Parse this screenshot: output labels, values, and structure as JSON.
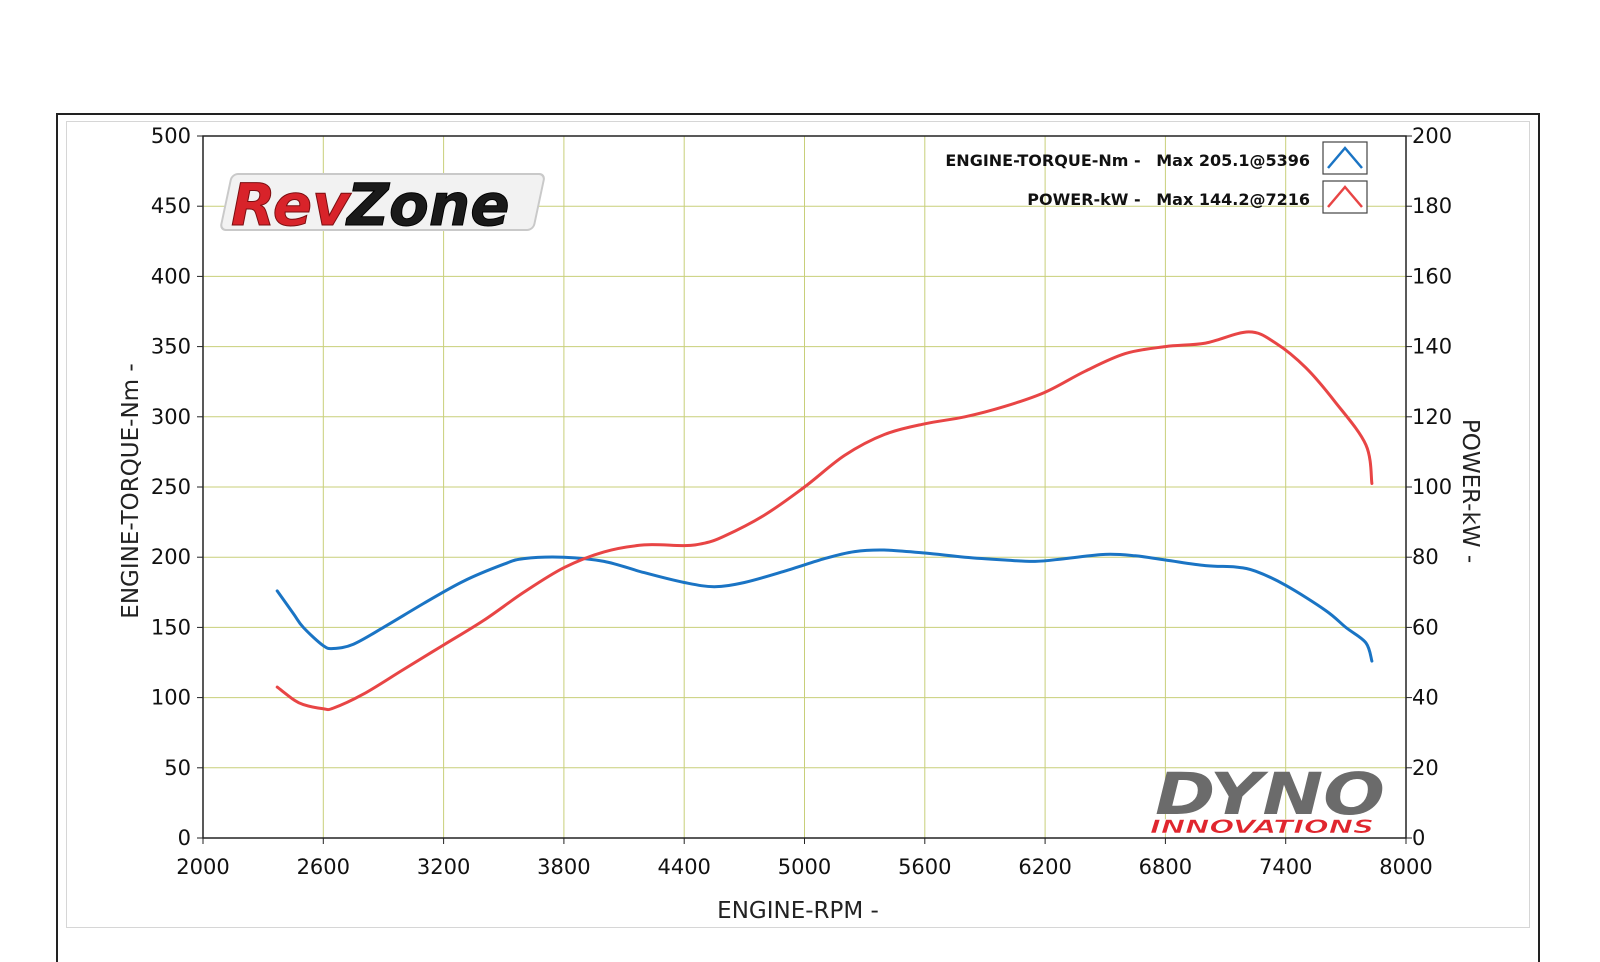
{
  "chart_data": {
    "type": "line",
    "xlabel": "ENGINE-RPM -",
    "ylabel_left": "ENGINE-TORQUE-Nm -",
    "ylabel_right": "POWER-kW -",
    "xlim": [
      2000,
      8000
    ],
    "ylim_left": [
      0,
      500
    ],
    "ylim_right": [
      0,
      200
    ],
    "x_ticks": [
      "2000",
      "2600",
      "3200",
      "3800",
      "4400",
      "5000",
      "5600",
      "6200",
      "6800",
      "7400",
      "8000"
    ],
    "y_left_ticks": [
      "0",
      "50",
      "100",
      "150",
      "200",
      "250",
      "300",
      "350",
      "400",
      "450",
      "500"
    ],
    "y_right_ticks": [
      "0",
      "20",
      "40",
      "60",
      "80",
      "100",
      "120",
      "140",
      "160",
      "180",
      "200"
    ],
    "grid": true,
    "legend_position": "top-right",
    "series": [
      {
        "name": "ENGINE-TORQUE-Nm -",
        "max_label": "Max 205.1@5396",
        "axis": "left",
        "color": "#1a74c4",
        "x": [
          2370,
          2450,
          2500,
          2600,
          2650,
          2750,
          2900,
          3100,
          3300,
          3500,
          3600,
          3800,
          4000,
          4200,
          4400,
          4550,
          4700,
          4900,
          5100,
          5250,
          5396,
          5600,
          5800,
          6000,
          6150,
          6300,
          6500,
          6650,
          6800,
          7000,
          7150,
          7250,
          7400,
          7600,
          7700,
          7800,
          7830
        ],
        "y": [
          176,
          160,
          150,
          137,
          135,
          138,
          150,
          167,
          183,
          195,
          199,
          200,
          197,
          189,
          182,
          179,
          182,
          190,
          199,
          204,
          205.1,
          203,
          200,
          198,
          197,
          199,
          202,
          201,
          198,
          194,
          193,
          190,
          180,
          162,
          150,
          139,
          126
        ]
      },
      {
        "name": "POWER-kW -",
        "max_label": "Max 144.2@7216",
        "axis": "right",
        "color": "#e84545",
        "x": [
          2370,
          2450,
          2500,
          2600,
          2650,
          2800,
          3000,
          3200,
          3400,
          3600,
          3800,
          4000,
          4200,
          4400,
          4500,
          4600,
          4800,
          5000,
          5200,
          5400,
          5600,
          5800,
          6000,
          6200,
          6400,
          6600,
          6800,
          7000,
          7216,
          7350,
          7500,
          7650,
          7800,
          7830
        ],
        "y": [
          43,
          39.5,
          38,
          36.8,
          37,
          41,
          48,
          55,
          62,
          70,
          77,
          81.5,
          83.5,
          83.3,
          84,
          86,
          92,
          100,
          109,
          115,
          118,
          120,
          123,
          127,
          133,
          138,
          140,
          141,
          144.2,
          141,
          134,
          124,
          112,
          101
        ]
      }
    ]
  },
  "brand": {
    "rev_text_1": "Rev",
    "rev_text_2": "Zone",
    "dyno_text": "DYNO",
    "innovations_text": "INNOVATIONS",
    "rev_color": "#d8232a",
    "dyno_color": "#6b6b6b"
  }
}
